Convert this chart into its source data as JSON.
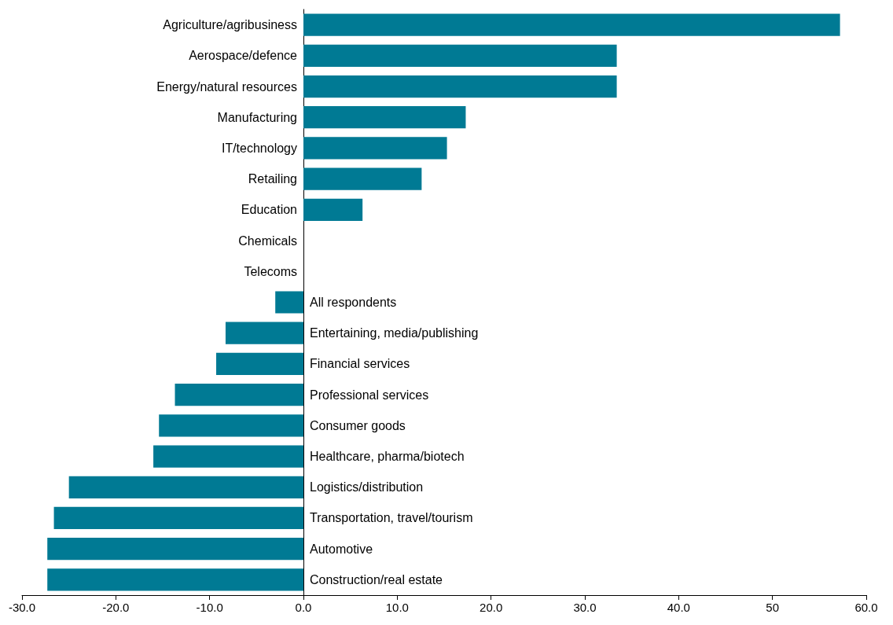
{
  "chart_data": {
    "type": "bar",
    "orientation": "horizontal",
    "categories": [
      "Agriculture/agribusiness",
      "Aerospace/defence",
      "Energy/natural resources",
      "Manufacturing",
      "IT/technology",
      "Retailing",
      "Education",
      "Chemicals",
      "Telecoms",
      "All respondents",
      "Entertaining, media/publishing",
      "Financial services",
      "Professional services",
      "Consumer goods",
      "Healthcare, pharma/biotech",
      "Logistics/distribution",
      "Transportation, travel/tourism",
      "Automotive",
      "Construction/real estate"
    ],
    "values": [
      57.2,
      33.4,
      33.4,
      17.3,
      15.3,
      12.6,
      6.3,
      0,
      0,
      -3.0,
      -8.3,
      -9.3,
      -13.7,
      -15.4,
      -16.0,
      -25.0,
      -26.6,
      -27.3,
      -27.3
    ],
    "color": "#007a94",
    "xlim": [
      -30,
      60
    ],
    "xticks": [
      {
        "value": -30,
        "label": "-30.0"
      },
      {
        "value": -20,
        "label": "-20.0"
      },
      {
        "value": -10,
        "label": "-10.0"
      },
      {
        "value": 0,
        "label": "0.0"
      },
      {
        "value": 10,
        "label": "10.0"
      },
      {
        "value": 20,
        "label": "20.0"
      },
      {
        "value": 30,
        "label": "30.0"
      },
      {
        "value": 40,
        "label": "40.0"
      },
      50,
      {
        "value": 60,
        "label": "60.0"
      }
    ],
    "grid": false
  }
}
